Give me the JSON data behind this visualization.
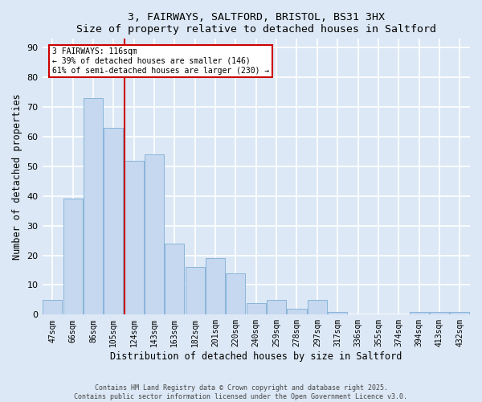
{
  "title1": "3, FAIRWAYS, SALTFORD, BRISTOL, BS31 3HX",
  "title2": "Size of property relative to detached houses in Saltford",
  "xlabel": "Distribution of detached houses by size in Saltford",
  "ylabel": "Number of detached properties",
  "categories": [
    "47sqm",
    "66sqm",
    "86sqm",
    "105sqm",
    "124sqm",
    "143sqm",
    "163sqm",
    "182sqm",
    "201sqm",
    "220sqm",
    "240sqm",
    "259sqm",
    "278sqm",
    "297sqm",
    "317sqm",
    "336sqm",
    "355sqm",
    "374sqm",
    "394sqm",
    "413sqm",
    "432sqm"
  ],
  "values": [
    5,
    39,
    73,
    63,
    52,
    54,
    24,
    16,
    19,
    14,
    4,
    5,
    2,
    5,
    1,
    0,
    0,
    0,
    1,
    1,
    1
  ],
  "bar_color": "#c5d8f0",
  "bar_edge_color": "#89b4d9",
  "background_color": "#dce8f5",
  "grid_color": "#ffffff",
  "red_line_x": 3.55,
  "annotation_text": "3 FAIRWAYS: 116sqm\n← 39% of detached houses are smaller (146)\n61% of semi-detached houses are larger (230) →",
  "annotation_box_color": "#ffffff",
  "annotation_box_edge": "#cc0000",
  "footer1": "Contains HM Land Registry data © Crown copyright and database right 2025.",
  "footer2": "Contains public sector information licensed under the Open Government Licence v3.0.",
  "ylim": [
    0,
    93
  ],
  "yticks": [
    0,
    10,
    20,
    30,
    40,
    50,
    60,
    70,
    80,
    90
  ]
}
